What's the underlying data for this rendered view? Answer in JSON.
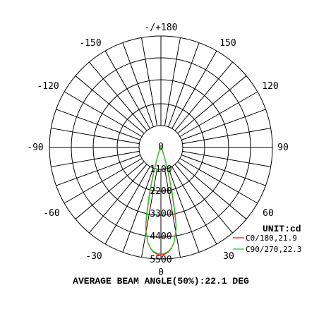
{
  "chart_data": {
    "type": "polar",
    "unit_label": "UNIT:cd",
    "caption": "AVERAGE BEAM ANGLE(50%):22.1 DEG",
    "angle_labels": [
      {
        "angle": 180,
        "text": "-/+180"
      },
      {
        "angle": -150,
        "text": "-150"
      },
      {
        "angle": 150,
        "text": "150"
      },
      {
        "angle": -120,
        "text": "-120"
      },
      {
        "angle": 120,
        "text": "120"
      },
      {
        "angle": -90,
        "text": "-90"
      },
      {
        "angle": 90,
        "text": "90"
      },
      {
        "angle": -60,
        "text": "-60"
      },
      {
        "angle": 60,
        "text": "60"
      },
      {
        "angle": -30,
        "text": "-30"
      },
      {
        "angle": 30,
        "text": "30"
      },
      {
        "angle": 0,
        "text": "0"
      }
    ],
    "radial_ticks": [
      0,
      1100,
      2200,
      3300,
      4400,
      5500
    ],
    "rmax": 5500,
    "legend_position": "bottom-right",
    "series": [
      {
        "name": "C0/180,21.9",
        "color": "#e02020",
        "angles": [
          0,
          2,
          4,
          6,
          8,
          10,
          11,
          12,
          14,
          16,
          20,
          30,
          45
        ],
        "values": [
          5300,
          5270,
          5180,
          5000,
          4700,
          4200,
          3900,
          3300,
          2200,
          1300,
          500,
          120,
          0
        ]
      },
      {
        "name": "C90/270,22.3",
        "color": "#20d020",
        "angles": [
          0,
          2,
          4,
          6,
          8,
          10,
          11,
          12,
          14,
          16,
          20,
          30,
          45
        ],
        "values": [
          5250,
          5220,
          5140,
          4980,
          4700,
          4250,
          3950,
          3450,
          2350,
          1400,
          550,
          130,
          0
        ]
      }
    ]
  }
}
